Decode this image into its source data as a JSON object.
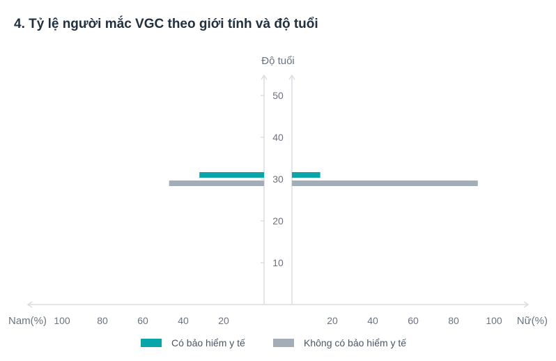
{
  "title": "4. Tỷ lệ người mắc VGC theo giới tính và độ tuổi",
  "chart_data": {
    "type": "bar",
    "orientation": "horizontal-pyramid",
    "title": "4. Tỷ lệ người mắc VGC theo giới tính và độ tuổi",
    "y_axis_label": "Độ tuổi",
    "left_axis_label": "Nam(%)",
    "right_axis_label": "Nữ(%)",
    "y_ticks": [
      10,
      20,
      30,
      40,
      50
    ],
    "x_ticks_left": [
      100,
      80,
      60,
      40,
      20
    ],
    "x_ticks_right": [
      20,
      40,
      60,
      80,
      100
    ],
    "y_range": [
      0,
      55
    ],
    "x_range": [
      0,
      120
    ],
    "legend_position": "bottom",
    "series": [
      {
        "name": "Có bảo hiểm y tế",
        "color": "#0aa5a8",
        "age": 31,
        "male": 32,
        "female": 14
      },
      {
        "name": "Không có bảo hiểm y tế",
        "color": "#a3adb8",
        "age": 29,
        "male": 47,
        "female": 92
      }
    ]
  }
}
